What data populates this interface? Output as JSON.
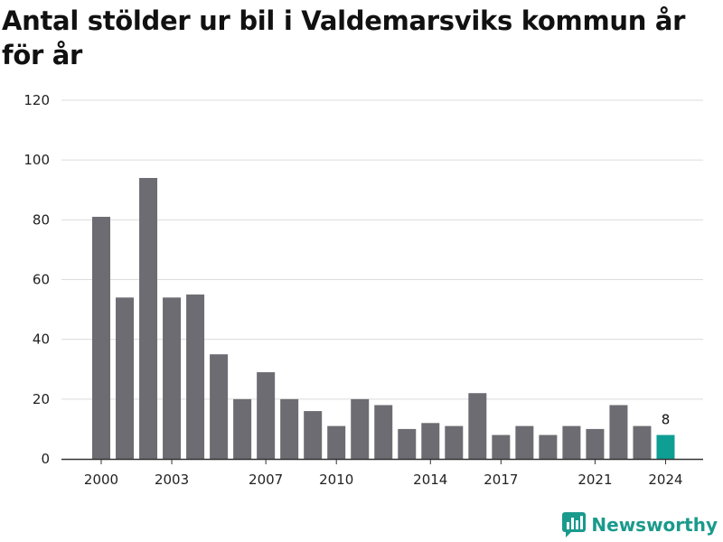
{
  "chart_data": {
    "type": "bar",
    "title": "Antal stölder ur bil i Valdemarsviks kommun år för år",
    "xlabel": "",
    "ylabel": "",
    "categories": [
      2000,
      2001,
      2002,
      2003,
      2004,
      2005,
      2006,
      2007,
      2008,
      2009,
      2010,
      2011,
      2012,
      2013,
      2014,
      2015,
      2016,
      2017,
      2018,
      2019,
      2020,
      2021,
      2022,
      2023,
      2024
    ],
    "values": [
      81,
      54,
      94,
      54,
      55,
      35,
      20,
      29,
      20,
      16,
      11,
      20,
      18,
      10,
      12,
      11,
      22,
      8,
      11,
      8,
      11,
      10,
      18,
      11,
      8
    ],
    "x_tick_labels": [
      "2000",
      "2003",
      "2007",
      "2010",
      "2014",
      "2017",
      "2021",
      "2024"
    ],
    "y_ticks": [
      0,
      20,
      40,
      60,
      80,
      100,
      120
    ],
    "ylim": [
      0,
      120
    ],
    "grid": true,
    "highlight": {
      "category": 2024,
      "label": "8"
    },
    "colors": {
      "bar": "#6d6c72",
      "highlight": "#0f9e94",
      "grid": "#dcdcdc",
      "axis": "#333333"
    }
  },
  "brand": {
    "name": "Newsworthy",
    "icon": "newsworthy-logo-icon",
    "color": "#1a9a8c"
  }
}
